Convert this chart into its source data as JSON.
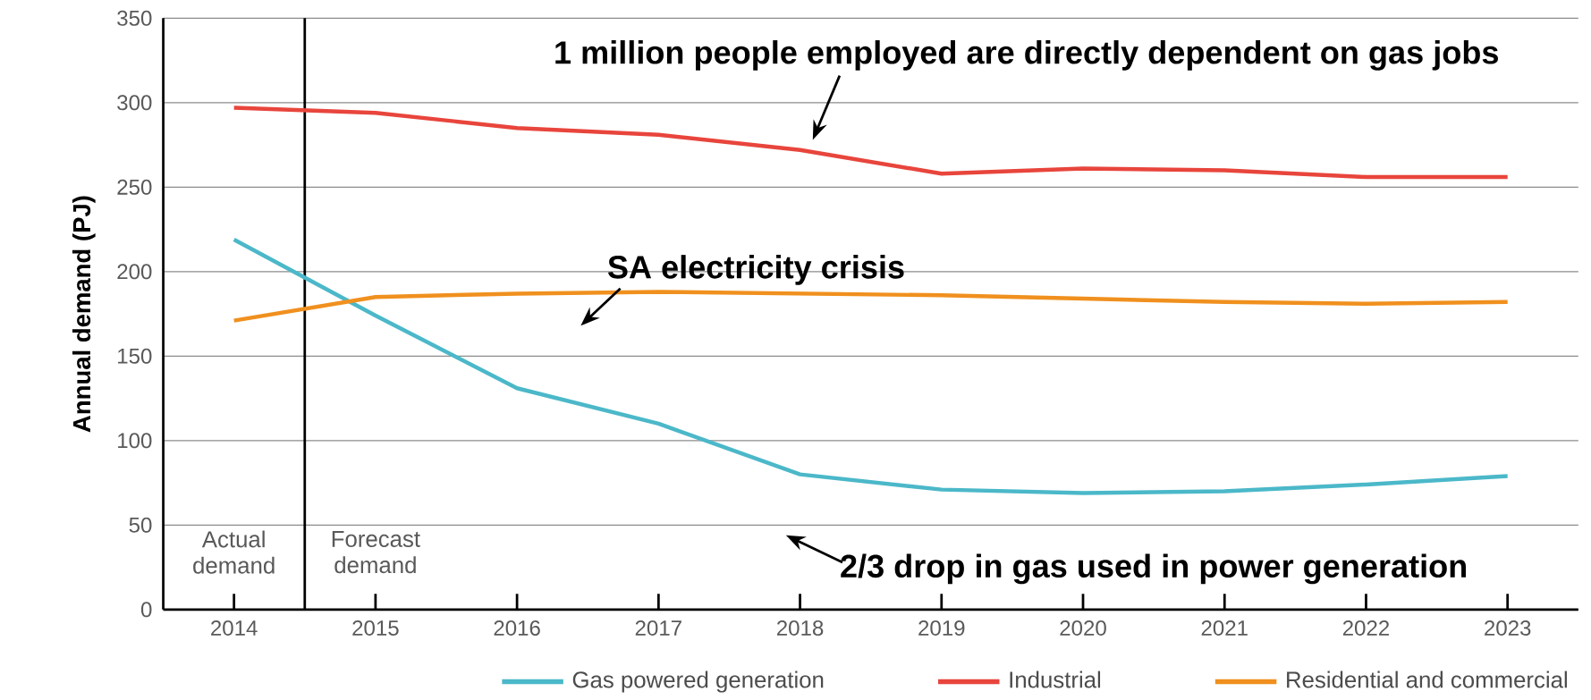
{
  "chart_data": {
    "type": "line",
    "ylabel": "Annual demand (PJ)",
    "x": [
      2014,
      2015,
      2016,
      2017,
      2018,
      2019,
      2020,
      2021,
      2022,
      2023
    ],
    "xlim": [
      2013.5,
      2023.5
    ],
    "xticks": [
      2014,
      2015,
      2016,
      2017,
      2018,
      2019,
      2020,
      2021,
      2022,
      2023
    ],
    "ylim": [
      0,
      350
    ],
    "yticks": [
      0,
      50,
      100,
      150,
      200,
      250,
      300,
      350
    ],
    "grid": "y",
    "legend": "bottom",
    "marker": "none",
    "line_style": "solid",
    "series": [
      {
        "name": "Gas powered generation",
        "color": "#4bb8c9",
        "values": [
          219,
          174,
          131,
          110,
          80,
          71,
          69,
          70,
          74,
          79
        ]
      },
      {
        "name": "Industrial",
        "color": "#e8453c",
        "values": [
          297,
          294,
          285,
          281,
          272,
          258,
          261,
          260,
          256,
          256
        ]
      },
      {
        "name": "Residential and commercial",
        "color": "#f0901e",
        "values": [
          171,
          185,
          187,
          188,
          187,
          186,
          184,
          182,
          181,
          182
        ]
      }
    ],
    "ref_lines": [
      {
        "axis": "x",
        "value": 2014.5,
        "color": "#000000"
      }
    ],
    "annotations": [
      {
        "text": "1 million people employed are directly dependent on gas jobs",
        "x": 2018,
        "y": 272
      },
      "SA electricity crisis",
      "2/3 drop in gas used in power generation",
      "Actual demand",
      "Forecast demand"
    ]
  }
}
